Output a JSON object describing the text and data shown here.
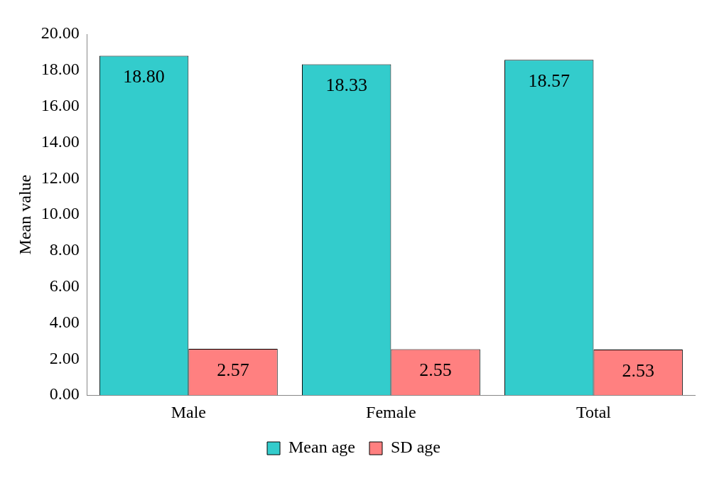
{
  "chart_data": {
    "type": "bar",
    "ylabel": "Mean value",
    "categories": [
      "Male",
      "Female",
      "Total"
    ],
    "series": [
      {
        "name": "Mean age",
        "color": "#33cccc",
        "values": [
          18.8,
          18.33,
          18.57
        ],
        "value_labels": [
          "18.80",
          "18.33",
          "18.57"
        ]
      },
      {
        "name": "SD age",
        "color": "#ff8080",
        "values": [
          2.57,
          2.55,
          2.53
        ],
        "value_labels": [
          "2.57",
          "2.55",
          "2.53"
        ]
      }
    ],
    "ylim": [
      0,
      20
    ],
    "yticks": [
      {
        "value": 0,
        "label": "0.00"
      },
      {
        "value": 2,
        "label": "2.00"
      },
      {
        "value": 4,
        "label": "4.00"
      },
      {
        "value": 6,
        "label": "6.00"
      },
      {
        "value": 8,
        "label": "8.00"
      },
      {
        "value": 10,
        "label": "10.00"
      },
      {
        "value": 12,
        "label": "12.00"
      },
      {
        "value": 14,
        "label": "14.00"
      },
      {
        "value": 16,
        "label": "16.00"
      },
      {
        "value": 18,
        "label": "18.00"
      },
      {
        "value": 20,
        "label": "20.00"
      }
    ],
    "grid": false,
    "legend": "bottom"
  }
}
